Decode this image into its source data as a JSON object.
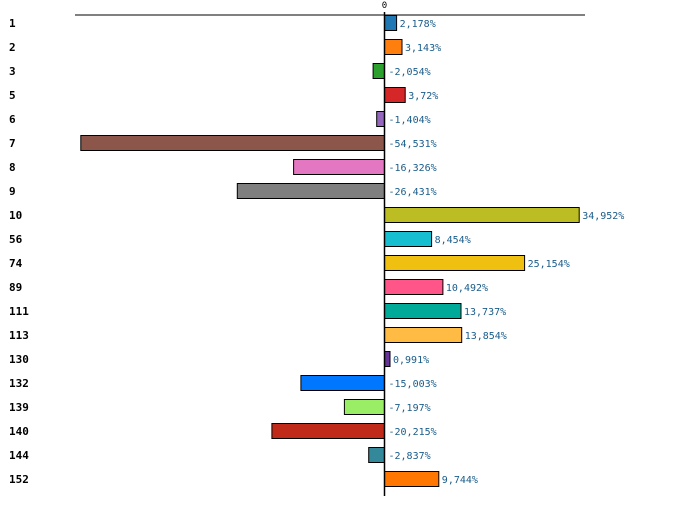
{
  "chart_data": {
    "type": "bar",
    "orientation": "horizontal",
    "title": "",
    "xlabel": "",
    "ylabel": "",
    "zero_tick_label": "0",
    "xlim": [
      -62,
      52
    ],
    "categories": [
      "1",
      "2",
      "3",
      "5",
      "6",
      "7",
      "8",
      "9",
      "10",
      "56",
      "74",
      "89",
      "111",
      "113",
      "130",
      "132",
      "139",
      "140",
      "144",
      "152"
    ],
    "values": [
      2.178,
      3.143,
      -2.054,
      3.72,
      -1.404,
      -54.531,
      -16.326,
      -26.431,
      34.952,
      8.454,
      25.154,
      10.492,
      13.737,
      13.854,
      0.991,
      -15.003,
      -7.197,
      -20.215,
      -2.837,
      9.744
    ],
    "value_labels": [
      "2,178%",
      "3,143%",
      "-2,054%",
      "3,72%",
      "-1,404%",
      "-54,531%",
      "-16,326%",
      "-26,431%",
      "34,952%",
      "8,454%",
      "25,154%",
      "10,492%",
      "13,737%",
      "13,854%",
      "0,991%",
      "-15,003%",
      "-7,197%",
      "-20,215%",
      "-2,837%",
      "9,744%"
    ],
    "colors": [
      "#1f77b4",
      "#ff7f0e",
      "#2ca02c",
      "#d62728",
      "#9467bd",
      "#8c564b",
      "#e377c2",
      "#7f7f7f",
      "#bcbd22",
      "#17becf",
      "#f0c010",
      "#ff5588",
      "#00aa99",
      "#ffbb44",
      "#663399",
      "#0077ff",
      "#99ee66",
      "#c02a18",
      "#338899",
      "#ff7700"
    ],
    "grid": false,
    "legend": "none"
  }
}
